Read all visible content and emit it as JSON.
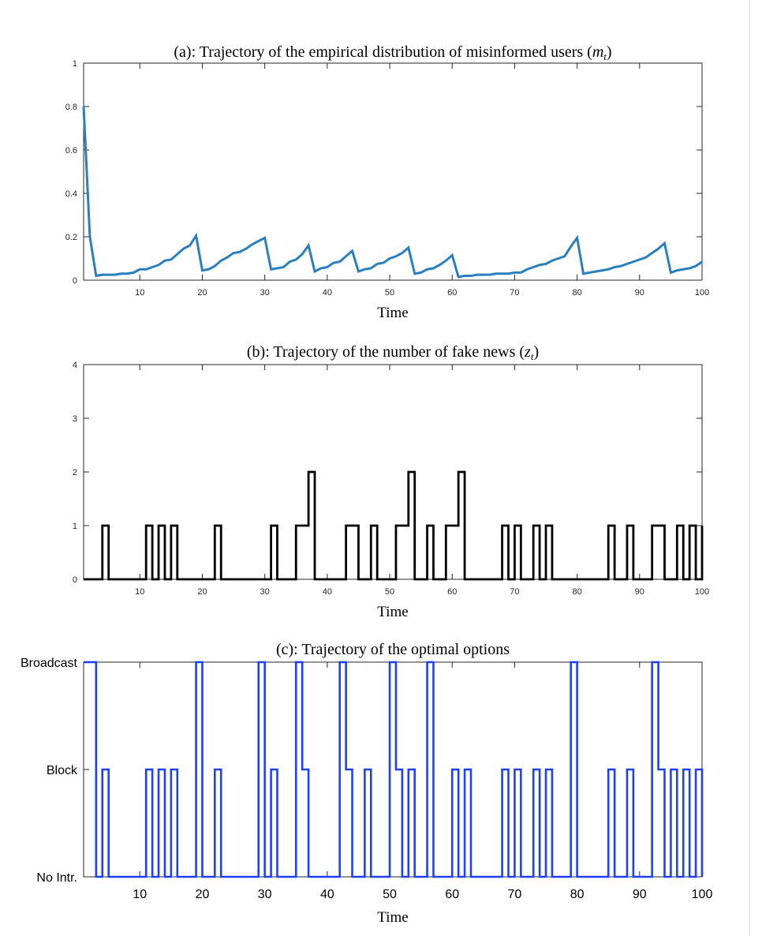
{
  "chart_data": [
    {
      "type": "line",
      "title": "(a): Trajectory of the empirical distribution of misinformed users (m",
      "title_sub": "t",
      "title_close": ")",
      "xlabel": "Time",
      "ylabel": "",
      "xlim": [
        1,
        100
      ],
      "ylim": [
        0,
        1
      ],
      "xticks": [
        10,
        20,
        30,
        40,
        50,
        60,
        70,
        80,
        90,
        100
      ],
      "yticks": [
        0,
        0.2,
        0.4,
        0.6,
        0.8,
        1
      ],
      "ytick_labels": [
        "0",
        "0.2",
        "0.4",
        "0.6",
        "0.8",
        "1"
      ],
      "color": "#2a7fbf",
      "series": [
        {
          "x": [
            1,
            2,
            3,
            4,
            5,
            6,
            7,
            8,
            9,
            10,
            11,
            12,
            13,
            14,
            15,
            16,
            17,
            18,
            19,
            20,
            21,
            22,
            23,
            24,
            25,
            26,
            27,
            28,
            29,
            30,
            31,
            32,
            33,
            34,
            35,
            36,
            37,
            38,
            39,
            40,
            41,
            42,
            43,
            44,
            45,
            46,
            47,
            48,
            49,
            50,
            51,
            52,
            53,
            54,
            55,
            56,
            57,
            58,
            59,
            60,
            61,
            62,
            63,
            64,
            65,
            66,
            67,
            68,
            69,
            70,
            71,
            72,
            73,
            74,
            75,
            76,
            77,
            78,
            79,
            80,
            81,
            82,
            83,
            84,
            85,
            86,
            87,
            88,
            89,
            90,
            91,
            92,
            93,
            94,
            95,
            96,
            97,
            98,
            99,
            100
          ],
          "values": [
            0.8,
            0.2,
            0.02,
            0.025,
            0.025,
            0.025,
            0.03,
            0.03,
            0.035,
            0.05,
            0.05,
            0.06,
            0.07,
            0.09,
            0.095,
            0.12,
            0.145,
            0.16,
            0.205,
            0.045,
            0.05,
            0.065,
            0.09,
            0.105,
            0.125,
            0.13,
            0.145,
            0.165,
            0.18,
            0.195,
            0.05,
            0.055,
            0.06,
            0.085,
            0.095,
            0.12,
            0.16,
            0.04,
            0.055,
            0.06,
            0.08,
            0.085,
            0.11,
            0.135,
            0.04,
            0.05,
            0.055,
            0.075,
            0.08,
            0.1,
            0.11,
            0.125,
            0.15,
            0.03,
            0.035,
            0.05,
            0.055,
            0.07,
            0.09,
            0.115,
            0.015,
            0.02,
            0.02,
            0.025,
            0.025,
            0.025,
            0.03,
            0.03,
            0.03,
            0.035,
            0.035,
            0.05,
            0.06,
            0.07,
            0.075,
            0.09,
            0.1,
            0.11,
            0.155,
            0.195,
            0.03,
            0.035,
            0.04,
            0.045,
            0.05,
            0.06,
            0.065,
            0.075,
            0.085,
            0.095,
            0.105,
            0.125,
            0.145,
            0.17,
            0.035,
            0.045,
            0.05,
            0.055,
            0.065,
            0.085
          ]
        }
      ]
    },
    {
      "type": "line",
      "step": true,
      "title": "(b): Trajectory of the number of fake news (z",
      "title_sub": "t",
      "title_close": ")",
      "xlabel": "Time",
      "ylabel": "",
      "xlim": [
        1,
        100
      ],
      "ylim": [
        0,
        4
      ],
      "xticks": [
        10,
        20,
        30,
        40,
        50,
        60,
        70,
        80,
        90,
        100
      ],
      "yticks": [
        0,
        1,
        2,
        3,
        4
      ],
      "ytick_labels": [
        "0",
        "1",
        "2",
        "3",
        "4"
      ],
      "color": "#000000",
      "series": [
        {
          "x": [
            1,
            2,
            3,
            4,
            5,
            6,
            7,
            8,
            9,
            10,
            11,
            12,
            13,
            14,
            15,
            16,
            17,
            18,
            19,
            20,
            21,
            22,
            23,
            24,
            25,
            26,
            27,
            28,
            29,
            30,
            31,
            32,
            33,
            34,
            35,
            36,
            37,
            38,
            39,
            40,
            41,
            42,
            43,
            44,
            45,
            46,
            47,
            48,
            49,
            50,
            51,
            52,
            53,
            54,
            55,
            56,
            57,
            58,
            59,
            60,
            61,
            62,
            63,
            64,
            65,
            66,
            67,
            68,
            69,
            70,
            71,
            72,
            73,
            74,
            75,
            76,
            77,
            78,
            79,
            80,
            81,
            82,
            83,
            84,
            85,
            86,
            87,
            88,
            89,
            90,
            91,
            92,
            93,
            94,
            95,
            96,
            97,
            98,
            99,
            100
          ],
          "values": [
            0,
            0,
            0,
            1,
            0,
            0,
            0,
            0,
            0,
            0,
            1,
            0,
            1,
            0,
            1,
            0,
            0,
            0,
            0,
            0,
            0,
            1,
            0,
            0,
            0,
            0,
            0,
            0,
            0,
            0,
            1,
            0,
            0,
            0,
            1,
            1,
            2,
            0,
            0,
            0,
            0,
            0,
            1,
            1,
            0,
            0,
            1,
            0,
            0,
            0,
            1,
            1,
            2,
            0,
            0,
            1,
            0,
            0,
            1,
            1,
            2,
            0,
            0,
            0,
            0,
            0,
            0,
            1,
            0,
            1,
            0,
            0,
            1,
            0,
            1,
            0,
            0,
            0,
            0,
            0,
            0,
            0,
            0,
            0,
            1,
            0,
            0,
            1,
            0,
            0,
            0,
            1,
            1,
            0,
            0,
            1,
            0,
            1,
            0,
            1
          ]
        }
      ]
    },
    {
      "type": "line",
      "step": true,
      "title": "(c): Trajectory of the optimal options",
      "xlabel": "Time",
      "ylabel": "",
      "xlim": [
        1,
        100
      ],
      "ylim": [
        0,
        2
      ],
      "xticks": [
        10,
        20,
        30,
        40,
        50,
        60,
        70,
        80,
        90,
        100
      ],
      "yticks": [
        0,
        1,
        2
      ],
      "ytick_labels": [
        "No Intr.",
        "Block",
        "Broadcast"
      ],
      "color": "#1f3fff",
      "series": [
        {
          "x": [
            1,
            2,
            3,
            4,
            5,
            6,
            7,
            8,
            9,
            10,
            11,
            12,
            13,
            14,
            15,
            16,
            17,
            18,
            19,
            20,
            21,
            22,
            23,
            24,
            25,
            26,
            27,
            28,
            29,
            30,
            31,
            32,
            33,
            34,
            35,
            36,
            37,
            38,
            39,
            40,
            41,
            42,
            43,
            44,
            45,
            46,
            47,
            48,
            49,
            50,
            51,
            52,
            53,
            54,
            55,
            56,
            57,
            58,
            59,
            60,
            61,
            62,
            63,
            64,
            65,
            66,
            67,
            68,
            69,
            70,
            71,
            72,
            73,
            74,
            75,
            76,
            77,
            78,
            79,
            80,
            81,
            82,
            83,
            84,
            85,
            86,
            87,
            88,
            89,
            90,
            91,
            92,
            93,
            94,
            95,
            96,
            97,
            98,
            99,
            100
          ],
          "values": [
            2,
            2,
            0,
            1,
            0,
            0,
            0,
            0,
            0,
            0,
            1,
            0,
            1,
            0,
            1,
            0,
            0,
            0,
            2,
            0,
            0,
            1,
            0,
            0,
            0,
            0,
            0,
            0,
            2,
            0,
            1,
            0,
            0,
            0,
            2,
            1,
            0,
            0,
            0,
            0,
            0,
            2,
            1,
            0,
            0,
            1,
            0,
            0,
            0,
            2,
            1,
            0,
            1,
            0,
            0,
            2,
            0,
            0,
            0,
            1,
            0,
            1,
            0,
            0,
            0,
            0,
            0,
            1,
            0,
            1,
            0,
            0,
            1,
            0,
            1,
            0,
            0,
            0,
            2,
            0,
            0,
            0,
            0,
            0,
            1,
            0,
            0,
            1,
            0,
            0,
            0,
            2,
            1,
            0,
            1,
            0,
            1,
            0,
            1,
            0
          ]
        }
      ]
    }
  ]
}
